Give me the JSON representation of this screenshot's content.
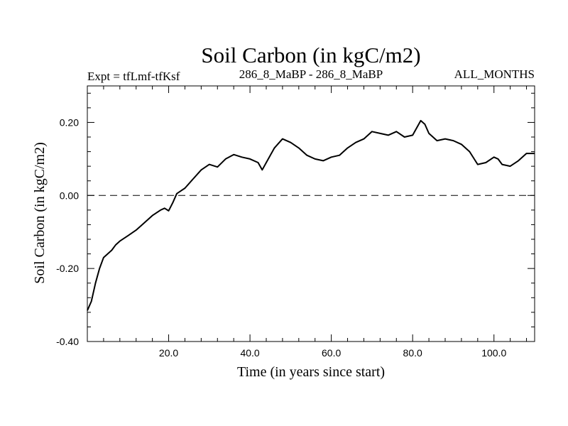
{
  "chart_data": {
    "type": "line",
    "title": "Soil Carbon (in kgC/m2)",
    "subtitle_left": "Expt = tfLmf-tfKsf",
    "subtitle_center": "286_8_MaBP - 286_8_MaBP",
    "subtitle_right": "ALL_MONTHS",
    "xlabel": "Time (in years since start)",
    "ylabel": "Soil Carbon (in kgC/m2)",
    "xlim": [
      0,
      110
    ],
    "ylim": [
      -0.4,
      0.3
    ],
    "x_ticks": [
      {
        "value": 20,
        "label": "20.0"
      },
      {
        "value": 40,
        "label": "40.0"
      },
      {
        "value": 60,
        "label": "60.0"
      },
      {
        "value": 80,
        "label": "80.0"
      },
      {
        "value": 100,
        "label": "100.0"
      }
    ],
    "y_ticks": [
      {
        "value": -0.4,
        "label": "-0.40"
      },
      {
        "value": -0.2,
        "label": "-0.20"
      },
      {
        "value": 0.0,
        "label": "0.00"
      },
      {
        "value": 0.2,
        "label": "0.20"
      }
    ],
    "reference_line": {
      "y": 0.0,
      "style": "dashed"
    },
    "series": [
      {
        "name": "Soil Carbon",
        "points": [
          [
            0,
            -0.315
          ],
          [
            1,
            -0.29
          ],
          [
            2,
            -0.24
          ],
          [
            3,
            -0.2
          ],
          [
            4,
            -0.17
          ],
          [
            5,
            -0.16
          ],
          [
            6,
            -0.15
          ],
          [
            7,
            -0.135
          ],
          [
            8,
            -0.125
          ],
          [
            10,
            -0.11
          ],
          [
            12,
            -0.095
          ],
          [
            14,
            -0.075
          ],
          [
            16,
            -0.055
          ],
          [
            18,
            -0.04
          ],
          [
            19,
            -0.035
          ],
          [
            20,
            -0.042
          ],
          [
            21,
            -0.02
          ],
          [
            22,
            0.005
          ],
          [
            24,
            0.02
          ],
          [
            26,
            0.045
          ],
          [
            28,
            0.07
          ],
          [
            30,
            0.085
          ],
          [
            32,
            0.078
          ],
          [
            34,
            0.1
          ],
          [
            36,
            0.112
          ],
          [
            38,
            0.105
          ],
          [
            40,
            0.1
          ],
          [
            42,
            0.09
          ],
          [
            43,
            0.07
          ],
          [
            44,
            0.09
          ],
          [
            46,
            0.13
          ],
          [
            48,
            0.155
          ],
          [
            50,
            0.145
          ],
          [
            52,
            0.13
          ],
          [
            54,
            0.11
          ],
          [
            56,
            0.1
          ],
          [
            58,
            0.095
          ],
          [
            60,
            0.105
          ],
          [
            62,
            0.11
          ],
          [
            64,
            0.13
          ],
          [
            66,
            0.145
          ],
          [
            68,
            0.155
          ],
          [
            70,
            0.175
          ],
          [
            72,
            0.17
          ],
          [
            74,
            0.165
          ],
          [
            76,
            0.175
          ],
          [
            78,
            0.16
          ],
          [
            80,
            0.165
          ],
          [
            82,
            0.205
          ],
          [
            83,
            0.195
          ],
          [
            84,
            0.17
          ],
          [
            86,
            0.15
          ],
          [
            88,
            0.155
          ],
          [
            90,
            0.15
          ],
          [
            92,
            0.14
          ],
          [
            94,
            0.12
          ],
          [
            96,
            0.085
          ],
          [
            98,
            0.09
          ],
          [
            100,
            0.105
          ],
          [
            101,
            0.1
          ],
          [
            102,
            0.085
          ],
          [
            104,
            0.08
          ],
          [
            106,
            0.095
          ],
          [
            108,
            0.115
          ],
          [
            110,
            0.115
          ]
        ]
      }
    ]
  }
}
